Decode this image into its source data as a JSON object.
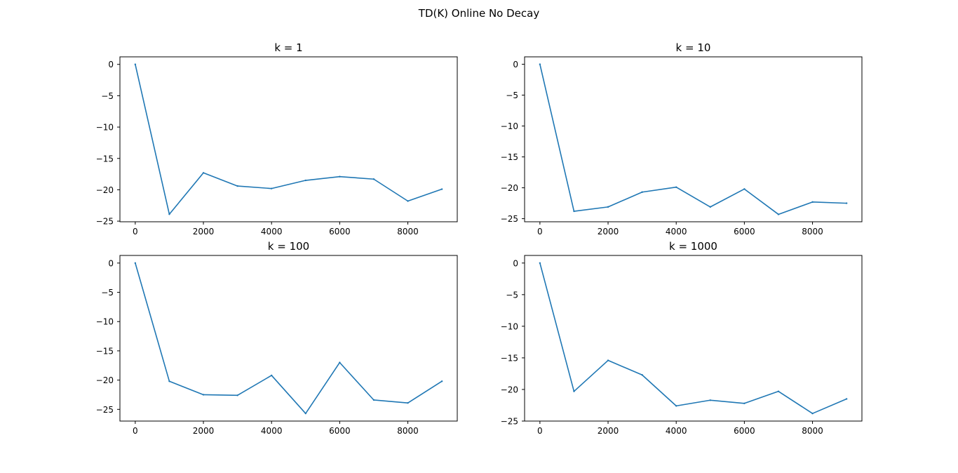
{
  "figure": {
    "suptitle": "TD(K) Online No Decay"
  },
  "style": {
    "line_color": "#1f77b4",
    "axes_color": "#000000",
    "background": "#ffffff"
  },
  "chart_data": [
    {
      "type": "line",
      "title": "k = 1",
      "xlabel": "",
      "ylabel": "",
      "grid": false,
      "x": [
        0,
        1000,
        2000,
        3000,
        4000,
        5000,
        6000,
        7000,
        8000,
        9000
      ],
      "series": [
        {
          "values": [
            0,
            -23.9,
            -17.3,
            -19.4,
            -19.8,
            -18.5,
            -17.9,
            -18.3,
            -21.8,
            -19.9
          ]
        }
      ],
      "xlim": [
        -450,
        9450
      ],
      "ylim": [
        -25.1,
        1.2
      ],
      "xticks": [
        0,
        2000,
        4000,
        6000,
        8000
      ],
      "yticks": [
        0,
        -5,
        -10,
        -15,
        -20,
        -25
      ]
    },
    {
      "type": "line",
      "title": "k = 10",
      "xlabel": "",
      "ylabel": "",
      "grid": false,
      "x": [
        0,
        1000,
        2000,
        3000,
        4000,
        5000,
        6000,
        7000,
        8000,
        9000
      ],
      "series": [
        {
          "values": [
            0,
            -23.8,
            -23.1,
            -20.7,
            -19.9,
            -23.1,
            -20.2,
            -24.3,
            -22.3,
            -22.5
          ]
        }
      ],
      "xlim": [
        -450,
        9450
      ],
      "ylim": [
        -25.5,
        1.2
      ],
      "xticks": [
        0,
        2000,
        4000,
        6000,
        8000
      ],
      "yticks": [
        0,
        -5,
        -10,
        -15,
        -20,
        -25
      ]
    },
    {
      "type": "line",
      "title": "k = 100",
      "xlabel": "",
      "ylabel": "",
      "grid": false,
      "x": [
        0,
        1000,
        2000,
        3000,
        4000,
        5000,
        6000,
        7000,
        8000,
        9000
      ],
      "series": [
        {
          "values": [
            0,
            -20.2,
            -22.5,
            -22.6,
            -19.2,
            -25.7,
            -17.0,
            -23.4,
            -23.9,
            -20.2
          ]
        }
      ],
      "xlim": [
        -450,
        9450
      ],
      "ylim": [
        -27.0,
        1.3
      ],
      "xticks": [
        0,
        2000,
        4000,
        6000,
        8000
      ],
      "yticks": [
        0,
        -5,
        -10,
        -15,
        -20,
        -25
      ]
    },
    {
      "type": "line",
      "title": "k = 1000",
      "xlabel": "",
      "ylabel": "",
      "grid": false,
      "x": [
        0,
        1000,
        2000,
        3000,
        4000,
        5000,
        6000,
        7000,
        8000,
        9000
      ],
      "series": [
        {
          "values": [
            0,
            -20.3,
            -15.4,
            -17.7,
            -22.6,
            -21.7,
            -22.2,
            -20.3,
            -23.8,
            -21.5
          ]
        }
      ],
      "xlim": [
        -450,
        9450
      ],
      "ylim": [
        -25.0,
        1.2
      ],
      "xticks": [
        0,
        2000,
        4000,
        6000,
        8000
      ],
      "yticks": [
        0,
        -5,
        -10,
        -15,
        -20,
        -25
      ]
    }
  ]
}
